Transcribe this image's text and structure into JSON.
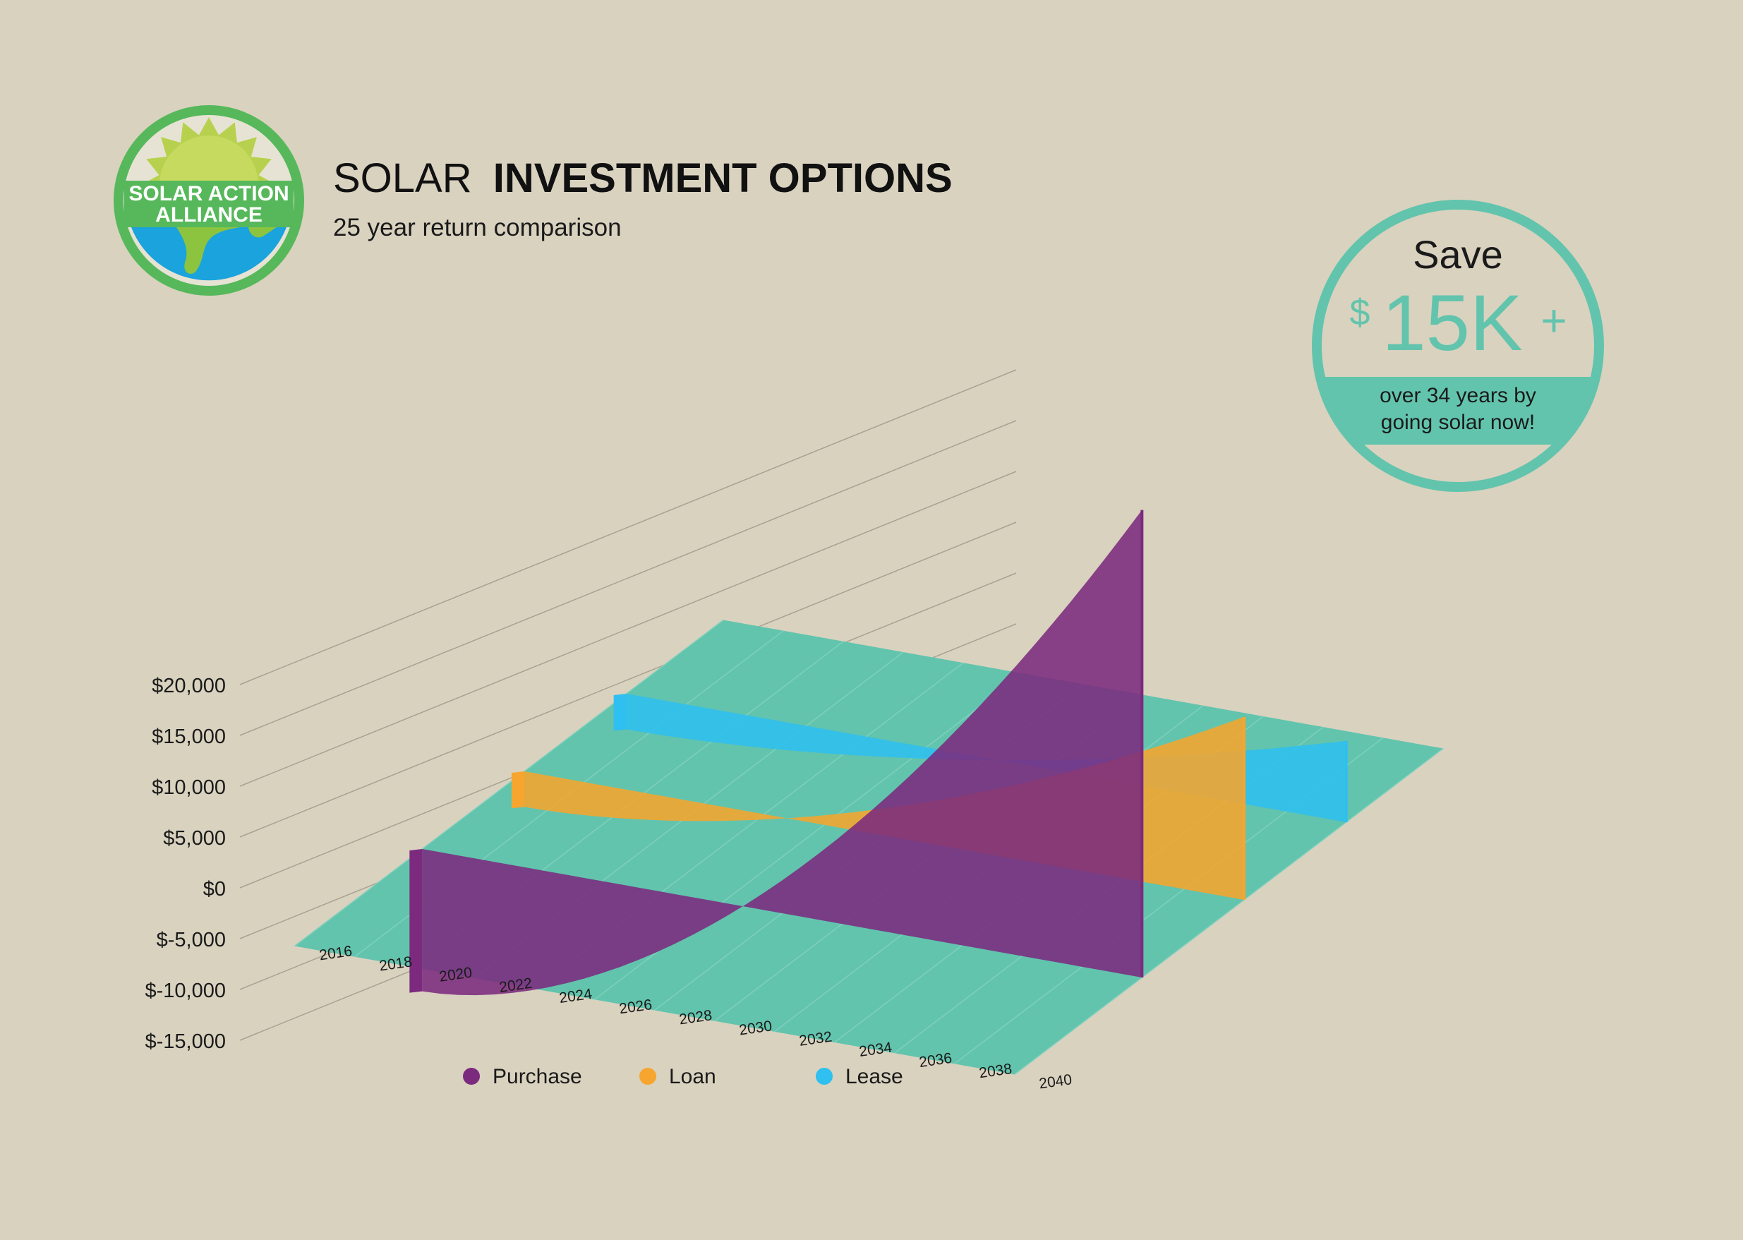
{
  "logo": {
    "line1": "SOLAR ACTION",
    "line2": "ALLIANCE",
    "colors": {
      "ring": "#56b85a",
      "sun": "#b7d14f",
      "earth": "#1aa3dc",
      "land": "#8cc43f"
    }
  },
  "header": {
    "title_light": "SOLAR",
    "title_bold": "INVESTMENT OPTIONS",
    "subtitle": "25 year return comparison"
  },
  "badge": {
    "save_label": "Save",
    "currency": "$",
    "amount": "15K",
    "plus": "+",
    "line1": "over 34 years by",
    "line2": "going solar now!",
    "color": "#62c4ad"
  },
  "chart_data": {
    "type": "area",
    "title": "SOLAR INVESTMENT OPTIONS",
    "subtitle": "25 year return comparison",
    "xlabel": "",
    "ylabel": "",
    "x": [
      2016,
      2018,
      2020,
      2022,
      2024,
      2026,
      2028,
      2030,
      2032,
      2034,
      2036,
      2038,
      2040
    ],
    "x_tick_labels": [
      "2016",
      "2018",
      "2020",
      "2022",
      "2024",
      "2026",
      "2028",
      "2030",
      "2032",
      "2034",
      "2036",
      "2038",
      "2040"
    ],
    "y_tick_values": [
      -15000,
      -10000,
      -5000,
      0,
      5000,
      10000,
      15000,
      20000
    ],
    "y_tick_labels": [
      "$-15,000",
      "$-10,000",
      "$-5,000",
      "$0",
      "$5,000",
      "$10,000",
      "$15,000",
      "$20,000"
    ],
    "ylim": [
      -15000,
      20000
    ],
    "grid": true,
    "legend_position": "bottom",
    "series": [
      {
        "name": "Purchase",
        "color": "#7b2a7e",
        "start_year": 2016,
        "end_year": 2040,
        "start_value": -14000,
        "end_value": 46000
      },
      {
        "name": "Loan",
        "color": "#f6a52e",
        "start_year": 2016,
        "end_year": 2040,
        "start_value": -3500,
        "end_value": 18000
      },
      {
        "name": "Lease",
        "color": "#2fbff0",
        "start_year": 2016,
        "end_year": 2040,
        "start_value": -3500,
        "end_value": 8000
      }
    ],
    "plane_color": "#62c4ad"
  }
}
